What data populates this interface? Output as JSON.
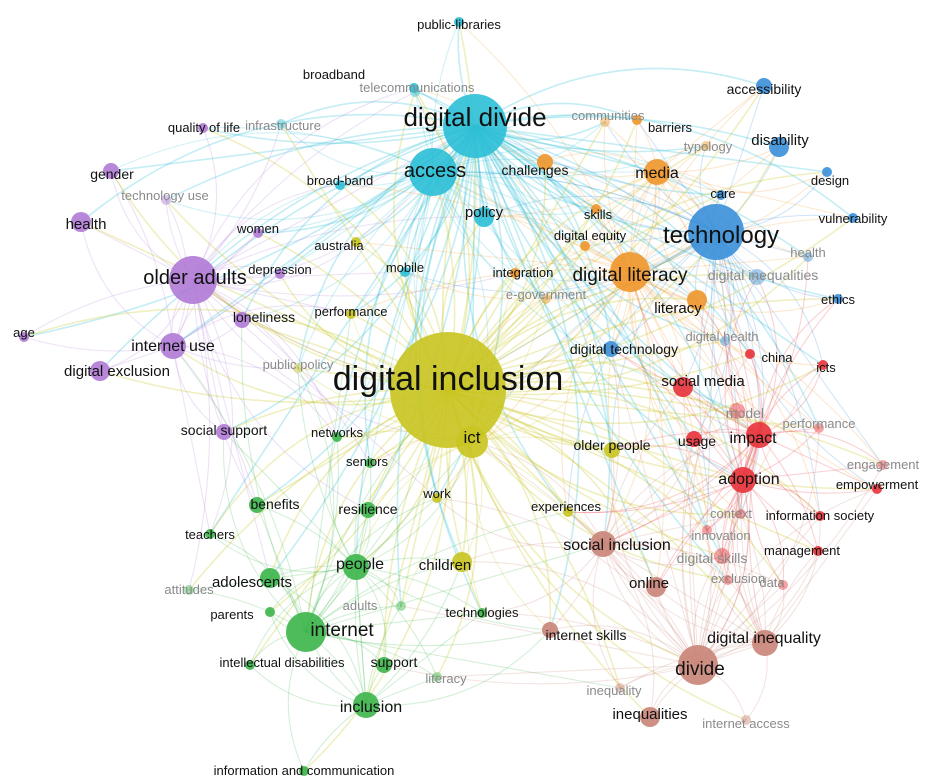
{
  "clusters": {
    "cyan": "#2bbfd6",
    "blue": "#3a8fd9",
    "orange": "#f0962b",
    "purple": "#b07ad6",
    "yellow": "#c9c420",
    "green": "#3cb54a",
    "red": "#e8323a",
    "brown": "#c98478"
  },
  "nodes": [
    {
      "label": "public-libraries",
      "cluster": "cyan",
      "weight": 1,
      "faint": false
    },
    {
      "label": "broadband",
      "cluster": "cyan",
      "weight": 1,
      "faint": false
    },
    {
      "label": "telecommunications",
      "cluster": "cyan",
      "weight": 1,
      "faint": true
    },
    {
      "label": "digital divide",
      "cluster": "cyan",
      "weight": 10,
      "faint": false
    },
    {
      "label": "infrastructure",
      "cluster": "cyan",
      "weight": 1,
      "faint": true
    },
    {
      "label": "access",
      "cluster": "cyan",
      "weight": 7,
      "faint": false
    },
    {
      "label": "broad-band",
      "cluster": "cyan",
      "weight": 1,
      "faint": false
    },
    {
      "label": "policy",
      "cluster": "cyan",
      "weight": 3,
      "faint": false
    },
    {
      "label": "mobile",
      "cluster": "cyan",
      "weight": 1,
      "faint": false
    },
    {
      "label": "communities",
      "cluster": "orange",
      "weight": 1,
      "faint": true
    },
    {
      "label": "barriers",
      "cluster": "orange",
      "weight": 1,
      "faint": false
    },
    {
      "label": "challenges",
      "cluster": "orange",
      "weight": 2,
      "faint": false
    },
    {
      "label": "media",
      "cluster": "orange",
      "weight": 4,
      "faint": false
    },
    {
      "label": "typology",
      "cluster": "orange",
      "weight": 1,
      "faint": true
    },
    {
      "label": "skills",
      "cluster": "orange",
      "weight": 1,
      "faint": false
    },
    {
      "label": "digital equity",
      "cluster": "orange",
      "weight": 1,
      "faint": false
    },
    {
      "label": "digital literacy",
      "cluster": "orange",
      "weight": 6,
      "faint": false
    },
    {
      "label": "literacy",
      "cluster": "orange",
      "weight": 3,
      "faint": false
    },
    {
      "label": "integration",
      "cluster": "orange",
      "weight": 1,
      "faint": false
    },
    {
      "label": "e-government",
      "cluster": "orange",
      "weight": 1,
      "faint": true
    },
    {
      "label": "accessibility",
      "cluster": "blue",
      "weight": 2,
      "faint": false
    },
    {
      "label": "disability",
      "cluster": "blue",
      "weight": 3,
      "faint": false
    },
    {
      "label": "design",
      "cluster": "blue",
      "weight": 1,
      "faint": false
    },
    {
      "label": "care",
      "cluster": "blue",
      "weight": 1,
      "faint": false
    },
    {
      "label": "technology",
      "cluster": "blue",
      "weight": 9,
      "faint": false
    },
    {
      "label": "vulnerability",
      "cluster": "blue",
      "weight": 1,
      "faint": false
    },
    {
      "label": "health",
      "cluster": "blue",
      "weight": 1,
      "faint": true
    },
    {
      "label": "digital inequalities",
      "cluster": "blue",
      "weight": 2,
      "faint": true
    },
    {
      "label": "ethics",
      "cluster": "blue",
      "weight": 1,
      "faint": false
    },
    {
      "label": "digital health",
      "cluster": "blue",
      "weight": 1,
      "faint": true
    },
    {
      "label": "digital technology",
      "cluster": "blue",
      "weight": 2,
      "faint": false
    },
    {
      "label": "quality of life",
      "cluster": "purple",
      "weight": 1,
      "faint": false
    },
    {
      "label": "gender",
      "cluster": "purple",
      "weight": 2,
      "faint": false
    },
    {
      "label": "technology use",
      "cluster": "purple",
      "weight": 1,
      "faint": true
    },
    {
      "label": "health",
      "cluster": "purple",
      "weight": 3,
      "faint": false
    },
    {
      "label": "women",
      "cluster": "purple",
      "weight": 1,
      "faint": false
    },
    {
      "label": "australia",
      "cluster": "yellow",
      "weight": 1,
      "faint": false
    },
    {
      "label": "depression",
      "cluster": "purple",
      "weight": 1,
      "faint": false
    },
    {
      "label": "older adults",
      "cluster": "purple",
      "weight": 7,
      "faint": false
    },
    {
      "label": "loneliness",
      "cluster": "purple",
      "weight": 2,
      "faint": false
    },
    {
      "label": "performance",
      "cluster": "yellow",
      "weight": 1,
      "faint": false
    },
    {
      "label": "age",
      "cluster": "purple",
      "weight": 1,
      "faint": false
    },
    {
      "label": "internet use",
      "cluster": "purple",
      "weight": 4,
      "faint": false
    },
    {
      "label": "digital exclusion",
      "cluster": "purple",
      "weight": 3,
      "faint": false
    },
    {
      "label": "public policy",
      "cluster": "yellow",
      "weight": 1,
      "faint": true
    },
    {
      "label": "social support",
      "cluster": "purple",
      "weight": 2,
      "faint": false
    },
    {
      "label": "digital inclusion",
      "cluster": "yellow",
      "weight": 14,
      "faint": false
    },
    {
      "label": "ict",
      "cluster": "yellow",
      "weight": 5,
      "faint": false
    },
    {
      "label": "networks",
      "cluster": "green",
      "weight": 1,
      "faint": false
    },
    {
      "label": "seniors",
      "cluster": "green",
      "weight": 1,
      "faint": false
    },
    {
      "label": "work",
      "cluster": "yellow",
      "weight": 1,
      "faint": false
    },
    {
      "label": "china",
      "cluster": "red",
      "weight": 1,
      "faint": false
    },
    {
      "label": "icts",
      "cluster": "red",
      "weight": 1,
      "faint": false
    },
    {
      "label": "social media",
      "cluster": "red",
      "weight": 3,
      "faint": false
    },
    {
      "label": "model",
      "cluster": "red",
      "weight": 2,
      "faint": true
    },
    {
      "label": "performance",
      "cluster": "red",
      "weight": 1,
      "faint": true
    },
    {
      "label": "older people",
      "cluster": "yellow",
      "weight": 2,
      "faint": false
    },
    {
      "label": "usage",
      "cluster": "red",
      "weight": 2,
      "faint": false
    },
    {
      "label": "impact",
      "cluster": "red",
      "weight": 4,
      "faint": false
    },
    {
      "label": "engagement",
      "cluster": "red",
      "weight": 1,
      "faint": true
    },
    {
      "label": "adoption",
      "cluster": "red",
      "weight": 4,
      "faint": false
    },
    {
      "label": "empowerment",
      "cluster": "red",
      "weight": 1,
      "faint": false
    },
    {
      "label": "context",
      "cluster": "red",
      "weight": 1,
      "faint": true
    },
    {
      "label": "information society",
      "cluster": "red",
      "weight": 1,
      "faint": false
    },
    {
      "label": "innovation",
      "cluster": "red",
      "weight": 1,
      "faint": true
    },
    {
      "label": "management",
      "cluster": "red",
      "weight": 1,
      "faint": false
    },
    {
      "label": "digital skills",
      "cluster": "red",
      "weight": 2,
      "faint": true
    },
    {
      "label": "exclusion",
      "cluster": "red",
      "weight": 1,
      "faint": true
    },
    {
      "label": "data",
      "cluster": "red",
      "weight": 1,
      "faint": true
    },
    {
      "label": "experiences",
      "cluster": "yellow",
      "weight": 1,
      "faint": false
    },
    {
      "label": "benefits",
      "cluster": "green",
      "weight": 2,
      "faint": false
    },
    {
      "label": "resilience",
      "cluster": "green",
      "weight": 2,
      "faint": false
    },
    {
      "label": "teachers",
      "cluster": "green",
      "weight": 1,
      "faint": false
    },
    {
      "label": "people",
      "cluster": "green",
      "weight": 4,
      "faint": false
    },
    {
      "label": "children",
      "cluster": "yellow",
      "weight": 3,
      "faint": false
    },
    {
      "label": "social inclusion",
      "cluster": "brown",
      "weight": 4,
      "faint": false
    },
    {
      "label": "attitudes",
      "cluster": "green",
      "weight": 1,
      "faint": true
    },
    {
      "label": "adolescents",
      "cluster": "green",
      "weight": 3,
      "faint": false
    },
    {
      "label": "online",
      "cluster": "brown",
      "weight": 3,
      "faint": false
    },
    {
      "label": "parents",
      "cluster": "green",
      "weight": 1,
      "faint": false
    },
    {
      "label": "adults",
      "cluster": "green",
      "weight": 1,
      "faint": true
    },
    {
      "label": "technologies",
      "cluster": "green",
      "weight": 1,
      "faint": false
    },
    {
      "label": "internet",
      "cluster": "green",
      "weight": 6,
      "faint": false
    },
    {
      "label": "internet skills",
      "cluster": "brown",
      "weight": 2,
      "faint": false
    },
    {
      "label": "digital inequality",
      "cluster": "brown",
      "weight": 4,
      "faint": false
    },
    {
      "label": "intellectual disabilities",
      "cluster": "green",
      "weight": 1,
      "faint": false
    },
    {
      "label": "support",
      "cluster": "green",
      "weight": 2,
      "faint": false
    },
    {
      "label": "divide",
      "cluster": "brown",
      "weight": 6,
      "faint": false
    },
    {
      "label": "literacy",
      "cluster": "green",
      "weight": 1,
      "faint": true
    },
    {
      "label": "inequality",
      "cluster": "brown",
      "weight": 1,
      "faint": true
    },
    {
      "label": "inclusion",
      "cluster": "green",
      "weight": 4,
      "faint": false
    },
    {
      "label": "inequalities",
      "cluster": "brown",
      "weight": 3,
      "faint": false
    },
    {
      "label": "internet access",
      "cluster": "brown",
      "weight": 1,
      "faint": true
    },
    {
      "label": "information and communication",
      "cluster": "green",
      "weight": 1,
      "faint": false
    }
  ]
}
